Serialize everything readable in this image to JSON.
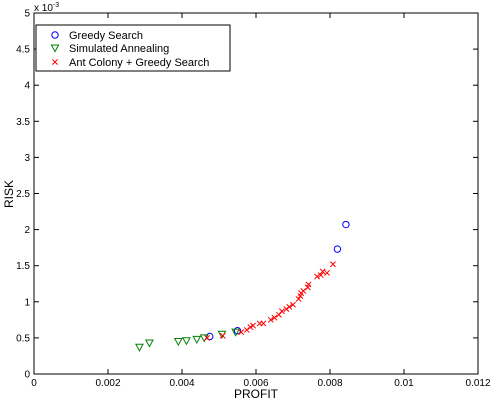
{
  "chart_data": {
    "type": "scatter",
    "xlabel": "PROFIT",
    "ylabel": "RISK",
    "y_exponent_label": "x 10",
    "y_exponent_power": "-3",
    "xlim": [
      0,
      0.012
    ],
    "ylim": [
      0,
      0.005
    ],
    "x_ticks": [
      0,
      0.002,
      0.004,
      0.006,
      0.008,
      0.01,
      0.012
    ],
    "x_tick_labels": [
      "0",
      "0.002",
      "0.004",
      "0.006",
      "0.008",
      "0.01",
      "0.012"
    ],
    "y_ticks": [
      0,
      0.0005,
      0.001,
      0.0015,
      0.002,
      0.0025,
      0.003,
      0.0035,
      0.004,
      0.0045,
      0.005
    ],
    "y_tick_labels": [
      "0",
      "0.5",
      "1",
      "1.5",
      "2",
      "2.5",
      "3",
      "3.5",
      "4",
      "4.5",
      "5"
    ],
    "grid": false,
    "legend_position": "top-left",
    "series": [
      {
        "name": "Greedy Search",
        "marker": "circle",
        "color": "#0000ff",
        "points": [
          [
            0.00475,
            0.00052
          ],
          [
            0.0055,
            0.0006
          ],
          [
            0.0082,
            0.00173
          ],
          [
            0.00843,
            0.00207
          ]
        ]
      },
      {
        "name": "Simulated Annealing",
        "marker": "triangle-down",
        "color": "#008000",
        "points": [
          [
            0.00285,
            0.00037
          ],
          [
            0.00312,
            0.00043
          ],
          [
            0.0039,
            0.00045
          ],
          [
            0.00412,
            0.00046
          ],
          [
            0.0044,
            0.00048
          ],
          [
            0.0046,
            0.0005
          ],
          [
            0.00508,
            0.00055
          ],
          [
            0.00545,
            0.00058
          ]
        ]
      },
      {
        "name": "Ant Colony + Greedy Search",
        "marker": "x",
        "color": "#ff0000",
        "points": [
          [
            0.00468,
            0.0005
          ],
          [
            0.0051,
            0.00053
          ],
          [
            0.0056,
            0.00058
          ],
          [
            0.00575,
            0.00061
          ],
          [
            0.00585,
            0.00065
          ],
          [
            0.00592,
            0.00067
          ],
          [
            0.0061,
            0.0007
          ],
          [
            0.0062,
            0.0007
          ],
          [
            0.0064,
            0.00075
          ],
          [
            0.0065,
            0.00078
          ],
          [
            0.00662,
            0.00082
          ],
          [
            0.0067,
            0.00087
          ],
          [
            0.00682,
            0.0009
          ],
          [
            0.0069,
            0.00093
          ],
          [
            0.007,
            0.00096
          ],
          [
            0.00715,
            0.00104
          ],
          [
            0.0072,
            0.00108
          ],
          [
            0.00722,
            0.00112
          ],
          [
            0.00728,
            0.00115
          ],
          [
            0.0074,
            0.0012
          ],
          [
            0.00742,
            0.00124
          ],
          [
            0.00765,
            0.00135
          ],
          [
            0.00775,
            0.00137
          ],
          [
            0.0078,
            0.00142
          ],
          [
            0.00792,
            0.0014
          ],
          [
            0.00808,
            0.00152
          ]
        ]
      }
    ]
  }
}
